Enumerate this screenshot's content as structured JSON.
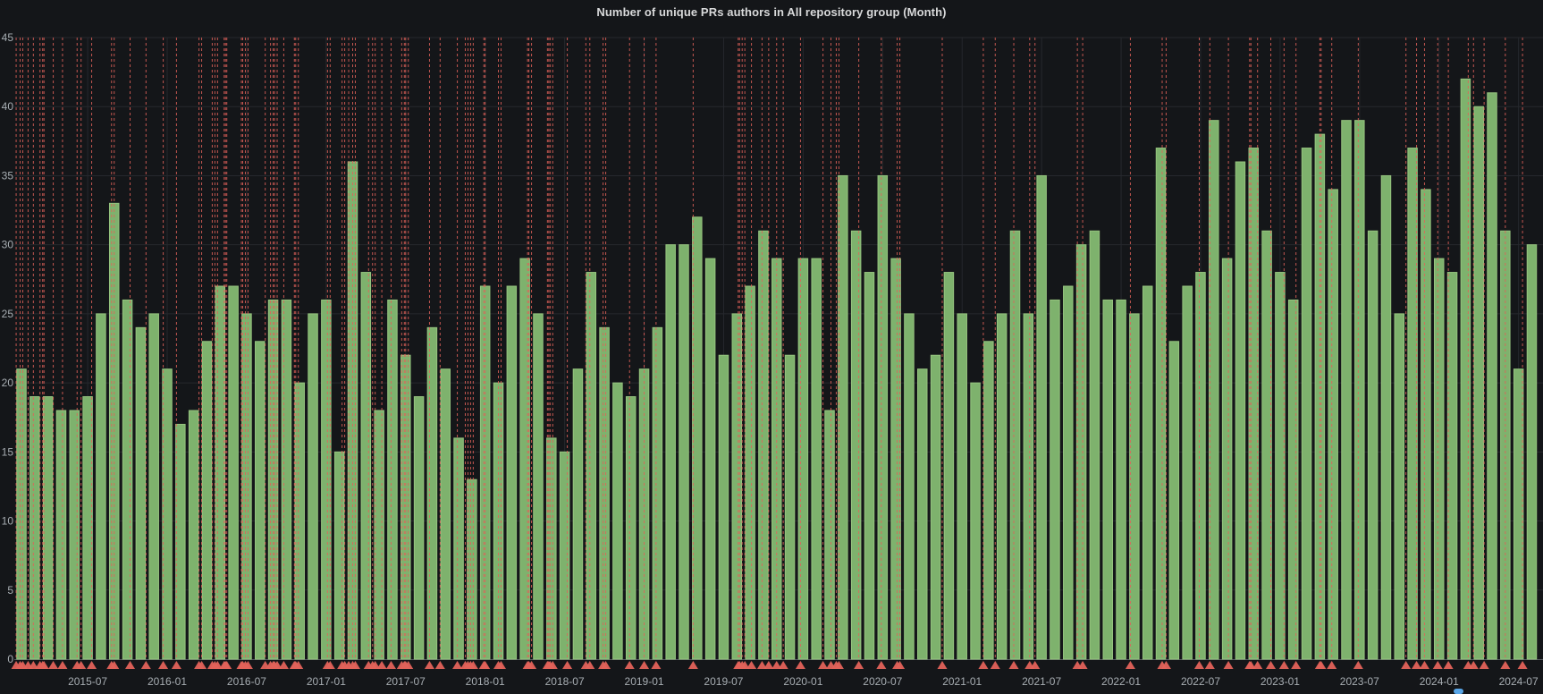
{
  "panel": {
    "title": "Number of unique PRs authors in All repository group (Month)"
  },
  "chart_data": {
    "type": "bar",
    "title": "Number of unique PRs authors in All repository group (Month)",
    "xlabel": "",
    "ylabel": "",
    "ylim": [
      0,
      45
    ],
    "grid": true,
    "bar_color": "#7eb26d",
    "bar_border_color": "#96c47f",
    "annotation_color": "#e2625a",
    "legend_marker_color": "#58a6e8",
    "y_ticks": [
      0,
      5,
      10,
      15,
      20,
      25,
      30,
      35,
      40,
      45
    ],
    "x_tick_labels": [
      "2015-07",
      "2016-01",
      "2016-07",
      "2017-01",
      "2017-07",
      "2018-01",
      "2018-07",
      "2019-01",
      "2019-07",
      "2020-01",
      "2020-07",
      "2021-01",
      "2021-07",
      "2022-01",
      "2022-07",
      "2023-01",
      "2023-07",
      "2024-01",
      "2024-07"
    ],
    "x_tick_month_index": [
      5,
      11,
      17,
      23,
      29,
      35,
      41,
      47,
      53,
      59,
      65,
      71,
      77,
      83,
      89,
      95,
      101,
      107,
      113
    ],
    "categories": [
      "2015-02",
      "2015-03",
      "2015-04",
      "2015-05",
      "2015-06",
      "2015-07",
      "2015-08",
      "2015-09",
      "2015-10",
      "2015-11",
      "2015-12",
      "2016-01",
      "2016-02",
      "2016-03",
      "2016-04",
      "2016-05",
      "2016-06",
      "2016-07",
      "2016-08",
      "2016-09",
      "2016-10",
      "2016-11",
      "2016-12",
      "2017-01",
      "2017-02",
      "2017-03",
      "2017-04",
      "2017-05",
      "2017-06",
      "2017-07",
      "2017-08",
      "2017-09",
      "2017-10",
      "2017-11",
      "2017-12",
      "2018-01",
      "2018-02",
      "2018-03",
      "2018-04",
      "2018-05",
      "2018-06",
      "2018-07",
      "2018-08",
      "2018-09",
      "2018-10",
      "2018-11",
      "2018-12",
      "2019-01",
      "2019-02",
      "2019-03",
      "2019-04",
      "2019-05",
      "2019-06",
      "2019-07",
      "2019-08",
      "2019-09",
      "2019-10",
      "2019-11",
      "2019-12",
      "2020-01",
      "2020-02",
      "2020-03",
      "2020-04",
      "2020-05",
      "2020-06",
      "2020-07",
      "2020-08",
      "2020-09",
      "2020-10",
      "2020-11",
      "2020-12",
      "2021-01",
      "2021-02",
      "2021-03",
      "2021-04",
      "2021-05",
      "2021-06",
      "2021-07",
      "2021-08",
      "2021-09",
      "2021-10",
      "2021-11",
      "2021-12",
      "2022-01",
      "2022-02",
      "2022-03",
      "2022-04",
      "2022-05",
      "2022-06",
      "2022-07",
      "2022-08",
      "2022-09",
      "2022-10",
      "2022-11",
      "2022-12",
      "2023-01",
      "2023-02",
      "2023-03",
      "2023-04",
      "2023-05",
      "2023-06",
      "2023-07",
      "2023-08",
      "2023-09",
      "2023-10",
      "2023-11",
      "2023-12",
      "2024-01",
      "2024-02",
      "2024-03",
      "2024-04",
      "2024-05",
      "2024-06",
      "2024-07",
      "2024-08"
    ],
    "values": [
      21,
      19,
      19,
      18,
      18,
      19,
      25,
      33,
      26,
      24,
      25,
      21,
      17,
      18,
      23,
      27,
      27,
      25,
      23,
      26,
      26,
      20,
      25,
      26,
      15,
      36,
      28,
      18,
      26,
      22,
      19,
      24,
      21,
      16,
      13,
      27,
      20,
      27,
      29,
      25,
      16,
      15,
      21,
      28,
      24,
      20,
      19,
      21,
      24,
      30,
      30,
      32,
      29,
      22,
      25,
      27,
      31,
      29,
      22,
      29,
      29,
      18,
      35,
      31,
      28,
      35,
      29,
      25,
      21,
      22,
      28,
      25,
      20,
      23,
      25,
      31,
      25,
      35,
      26,
      27,
      30,
      31,
      26,
      26,
      25,
      27,
      37,
      23,
      27,
      28,
      39,
      29,
      36,
      37,
      31,
      28,
      26,
      37,
      38,
      34,
      39,
      39,
      31,
      35,
      25,
      37,
      34,
      29,
      28,
      42,
      40,
      41,
      31,
      21,
      30
    ],
    "annotations_month_index": [
      -0.4,
      -0.1,
      0.1,
      0.5,
      0.9,
      1.4,
      1.6,
      1.7,
      2.4,
      3.1,
      4.2,
      4.5,
      5.3,
      6.8,
      7.0,
      8.2,
      9.4,
      10.7,
      11.7,
      13.4,
      13.6,
      14.4,
      14.6,
      14.8,
      15.3,
      15.4,
      15.5,
      16.6,
      16.7,
      16.9,
      17.1,
      18.4,
      18.8,
      19.0,
      19.1,
      19.3,
      19.8,
      20.6,
      20.7,
      20.9,
      23.1,
      23.3,
      24.2,
      24.4,
      24.7,
      25.0,
      25.2,
      26.2,
      26.5,
      26.7,
      27.2,
      27.9,
      28.7,
      28.9,
      29.0,
      29.2,
      30.8,
      31.6,
      32.9,
      33.5,
      33.7,
      33.9,
      34.1,
      34.9,
      35.0,
      36.0,
      36.2,
      38.2,
      38.3,
      38.5,
      39.7,
      39.8,
      39.9,
      40.1,
      41.2,
      42.6,
      42.9,
      43.9,
      44.1,
      45.9,
      47.0,
      47.9,
      50.7,
      54.1,
      54.2,
      54.4,
      54.6,
      55.1,
      55.9,
      56.4,
      57.0,
      57.5,
      58.8,
      60.5,
      61.1,
      61.5,
      61.7,
      63.2,
      64.9,
      66.1,
      66.3,
      69.5,
      72.6,
      73.5,
      74.9,
      76.1,
      76.5,
      79.7,
      80.1,
      83.7,
      86.1,
      86.4,
      88.9,
      89.7,
      91.1,
      92.7,
      92.8,
      93.3,
      94.3,
      95.3,
      96.2,
      98.0,
      98.1,
      98.9,
      100.9,
      104.5,
      105.3,
      105.9,
      106.9,
      107.7,
      109.2,
      109.6,
      110.4,
      112.0,
      113.3
    ]
  }
}
